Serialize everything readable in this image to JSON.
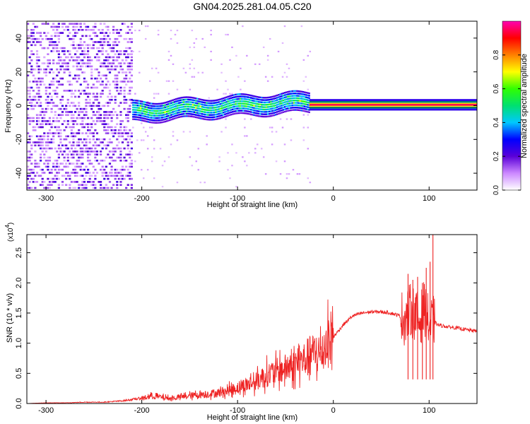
{
  "title": "GN04.2025.281.04.05.C20",
  "chart_data": [
    {
      "type": "heatmap",
      "xlabel": "Height of straight line (km)",
      "ylabel": "Frequency (Hz)",
      "xlim": [
        -320,
        150
      ],
      "ylim": [
        -50,
        50
      ],
      "xticks": [
        -300,
        -200,
        -100,
        0,
        100
      ],
      "yticks": [
        -40,
        -20,
        0,
        20,
        40
      ],
      "colorbar": {
        "label": "Normalized spectral amplitude",
        "range": [
          0,
          1
        ],
        "ticks": [
          0.0,
          0.2,
          0.4,
          0.6,
          0.8
        ],
        "colors": [
          "#ffffff",
          "#cc88ff",
          "#5a00d8",
          "#0000ff",
          "#00c8ff",
          "#00e070",
          "#30ff00",
          "#ffff00",
          "#ff8000",
          "#ff0000",
          "#ff00b0"
        ]
      },
      "features": [
        {
          "x_range": [
            -320,
            -210
          ],
          "freq_range": [
            -50,
            50
          ],
          "amplitude": 0.08
        },
        {
          "x_range": [
            -210,
            -25
          ],
          "freq_center_start": -3,
          "freq_center_end": 3,
          "freq_halfwidth": 6,
          "amplitude": 0.4
        },
        {
          "x_range": [
            -25,
            150
          ],
          "freq_center": 0.5,
          "freq_halfwidth": 1.2,
          "amplitude": 0.95
        }
      ]
    },
    {
      "type": "line",
      "xlabel": "Height of straight line (km)",
      "ylabel": "SNR (10 * v/v)",
      "y_multiplier_label": "(x10",
      "y_multiplier_exp": "4",
      "xlim": [
        -320,
        150
      ],
      "ylim": [
        0,
        2.8
      ],
      "xticks": [
        -300,
        -200,
        -100,
        0,
        100
      ],
      "yticks": [
        "0.0",
        "0.5",
        "1.0",
        "1.5",
        "2.0",
        "2.5"
      ],
      "color": "#ee2222",
      "x": [
        -320,
        -300,
        -280,
        -260,
        -240,
        -220,
        -200,
        -190,
        -180,
        -170,
        -160,
        -150,
        -140,
        -130,
        -120,
        -110,
        -100,
        -90,
        -80,
        -70,
        -60,
        -50,
        -40,
        -30,
        -20,
        -15,
        -10,
        -5,
        0,
        10,
        20,
        30,
        40,
        50,
        60,
        70,
        75,
        80,
        85,
        90,
        95,
        100,
        105,
        110,
        120,
        130,
        140,
        150
      ],
      "y": [
        0.0,
        0.01,
        0.01,
        0.02,
        0.02,
        0.04,
        0.08,
        0.12,
        0.1,
        0.08,
        0.1,
        0.12,
        0.14,
        0.15,
        0.17,
        0.2,
        0.25,
        0.3,
        0.35,
        0.45,
        0.5,
        0.55,
        0.6,
        0.7,
        0.8,
        0.75,
        0.85,
        1.0,
        1.1,
        1.3,
        1.45,
        1.5,
        1.52,
        1.52,
        1.5,
        1.45,
        1.4,
        1.55,
        1.5,
        1.35,
        1.6,
        1.3,
        1.35,
        1.3,
        1.27,
        1.25,
        1.22,
        1.2
      ],
      "spikes": [
        {
          "x": 78,
          "y": 2.15
        },
        {
          "x": 83,
          "y": 2.05
        },
        {
          "x": 88,
          "y": 2.1
        },
        {
          "x": 93,
          "y": 2.0
        },
        {
          "x": 97,
          "y": 2.25
        },
        {
          "x": 101,
          "y": 2.35
        },
        {
          "x": 104,
          "y": 2.8
        }
      ]
    }
  ]
}
